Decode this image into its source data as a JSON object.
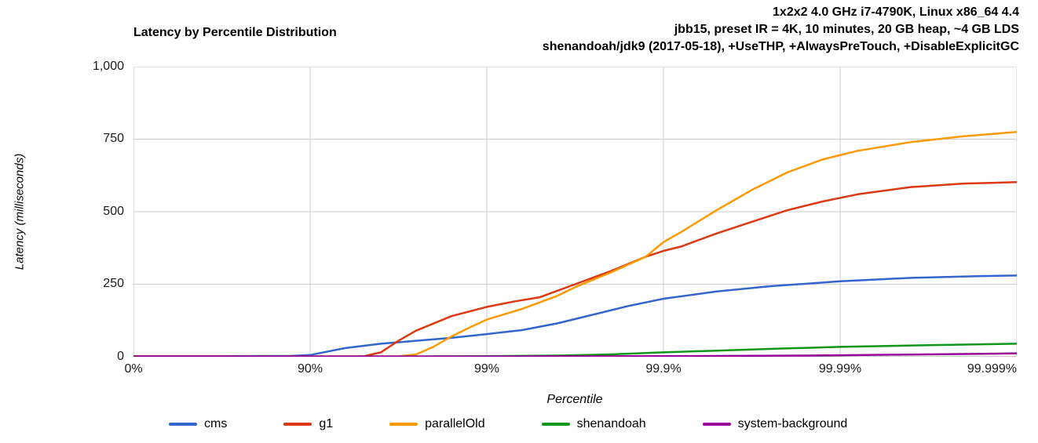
{
  "header": {
    "title": "Latency by Percentile Distribution",
    "config_lines": [
      "1x2x2 4.0 GHz i7-4790K, Linux x86_64 4.4",
      "jbb15, preset IR = 4K, 10 minutes, 20 GB heap, ~4 GB LDS",
      "shenandoah/jdk9 (2017-05-18), +UseTHP, +AlwaysPreTouch, +DisableExplicitGC"
    ]
  },
  "axes": {
    "y_label": "Latency (milliseconds)",
    "x_label": "Percentile"
  },
  "legend": [
    {
      "label": "cms",
      "color": "#3366cc"
    },
    {
      "label": "g1",
      "color": "#dc3912"
    },
    {
      "label": "parallelOld",
      "color": "#ff9900"
    },
    {
      "label": "shenandoah",
      "color": "#109618"
    },
    {
      "label": "system-background",
      "color": "#990099"
    }
  ],
  "chart_data": {
    "type": "line",
    "title": "Latency by Percentile Distribution",
    "xlabel": "Percentile",
    "ylabel": "Latency (milliseconds)",
    "x_scale": "logarithmic percentile axis, x expressed as number of nines (0=0%, 1=90%, 2=99%, 3=99.9%, 4=99.99%, 5=99.999%)",
    "xlim": [
      0,
      5
    ],
    "ylim": [
      0,
      1000
    ],
    "grid": true,
    "legend_position": "bottom",
    "x_ticks": [
      {
        "value": 0,
        "label": "0%"
      },
      {
        "value": 1,
        "label": "90%"
      },
      {
        "value": 2,
        "label": "99%"
      },
      {
        "value": 3,
        "label": "99.9%"
      },
      {
        "value": 4,
        "label": "99.99%"
      },
      {
        "value": 5,
        "label": "99.999%"
      }
    ],
    "y_ticks": [
      {
        "value": 0,
        "label": "0"
      },
      {
        "value": 250,
        "label": "250"
      },
      {
        "value": 500,
        "label": "500"
      },
      {
        "value": 750,
        "label": "750"
      },
      {
        "value": 1000,
        "label": "1,000"
      }
    ],
    "grid_color": "#cccccc",
    "baseline_color": "#999999",
    "series": [
      {
        "name": "cms",
        "color": "#3366cc",
        "points": [
          [
            0,
            2
          ],
          [
            0.5,
            2
          ],
          [
            0.9,
            3
          ],
          [
            1.0,
            6
          ],
          [
            1.1,
            18
          ],
          [
            1.2,
            30
          ],
          [
            1.4,
            45
          ],
          [
            1.6,
            55
          ],
          [
            1.8,
            65
          ],
          [
            2.0,
            78
          ],
          [
            2.2,
            92
          ],
          [
            2.4,
            115
          ],
          [
            2.6,
            145
          ],
          [
            2.8,
            175
          ],
          [
            3.0,
            200
          ],
          [
            3.3,
            225
          ],
          [
            3.6,
            243
          ],
          [
            4.0,
            260
          ],
          [
            4.4,
            272
          ],
          [
            4.8,
            278
          ],
          [
            5.0,
            280
          ]
        ]
      },
      {
        "name": "g1",
        "color": "#dc3912",
        "points": [
          [
            0,
            1
          ],
          [
            1.0,
            1
          ],
          [
            1.3,
            1
          ],
          [
            1.4,
            15
          ],
          [
            1.5,
            55
          ],
          [
            1.6,
            90
          ],
          [
            1.8,
            140
          ],
          [
            2.0,
            172
          ],
          [
            2.15,
            190
          ],
          [
            2.3,
            205
          ],
          [
            2.5,
            250
          ],
          [
            2.7,
            295
          ],
          [
            2.9,
            345
          ],
          [
            3.0,
            365
          ],
          [
            3.1,
            380
          ],
          [
            3.3,
            425
          ],
          [
            3.5,
            465
          ],
          [
            3.7,
            505
          ],
          [
            3.9,
            535
          ],
          [
            4.1,
            560
          ],
          [
            4.4,
            585
          ],
          [
            4.7,
            597
          ],
          [
            5.0,
            602
          ]
        ]
      },
      {
        "name": "parallelOld",
        "color": "#ff9900",
        "points": [
          [
            0,
            1
          ],
          [
            1.0,
            1
          ],
          [
            1.5,
            1
          ],
          [
            1.6,
            8
          ],
          [
            1.7,
            35
          ],
          [
            1.8,
            70
          ],
          [
            1.9,
            100
          ],
          [
            2.0,
            128
          ],
          [
            2.2,
            165
          ],
          [
            2.4,
            210
          ],
          [
            2.5,
            240
          ],
          [
            2.7,
            290
          ],
          [
            2.9,
            345
          ],
          [
            3.0,
            395
          ],
          [
            3.1,
            430
          ],
          [
            3.3,
            505
          ],
          [
            3.5,
            575
          ],
          [
            3.7,
            635
          ],
          [
            3.9,
            680
          ],
          [
            4.1,
            710
          ],
          [
            4.4,
            740
          ],
          [
            4.7,
            760
          ],
          [
            5.0,
            775
          ]
        ]
      },
      {
        "name": "shenandoah",
        "color": "#109618",
        "points": [
          [
            0,
            1
          ],
          [
            1.5,
            1
          ],
          [
            2.0,
            2
          ],
          [
            2.4,
            4
          ],
          [
            2.7,
            8
          ],
          [
            3.0,
            15
          ],
          [
            3.3,
            21
          ],
          [
            3.6,
            27
          ],
          [
            4.0,
            34
          ],
          [
            4.5,
            40
          ],
          [
            5.0,
            45
          ]
        ]
      },
      {
        "name": "system-background",
        "color": "#990099",
        "points": [
          [
            0,
            1
          ],
          [
            2.0,
            1
          ],
          [
            3.0,
            2
          ],
          [
            3.8,
            4
          ],
          [
            4.3,
            7
          ],
          [
            4.8,
            10
          ],
          [
            5.0,
            12
          ]
        ]
      }
    ]
  }
}
